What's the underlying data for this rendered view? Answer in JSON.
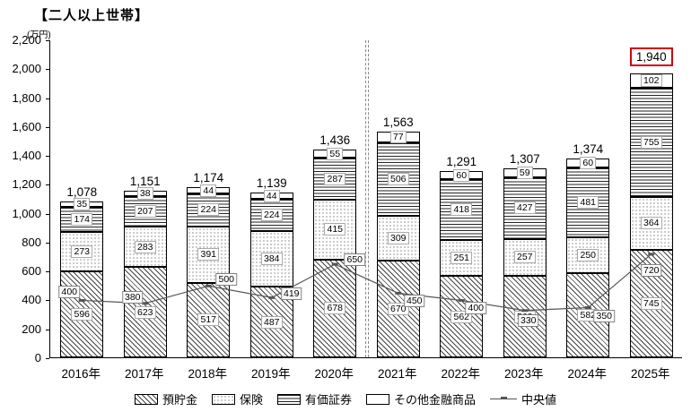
{
  "title": "【二人以上世帯】",
  "chart_data": {
    "type": "bar",
    "stacked": true,
    "title": "【二人以上世帯】",
    "y_unit": "(万円)",
    "ylim": [
      0,
      2200
    ],
    "ytick_interval": 200,
    "grid": false,
    "legend_position": "bottom",
    "categories": [
      "2016年",
      "2017年",
      "2018年",
      "2019年",
      "2020年",
      "2021年",
      "2022年",
      "2023年",
      "2024年",
      "2025年"
    ],
    "totals": [
      "1,078",
      "1,151",
      "1,174",
      "1,139",
      "1,436",
      "1,563",
      "1,291",
      "1,307",
      "1,374",
      "1,940"
    ],
    "highlighted_total_index": 9,
    "series": [
      {
        "name": "預貯金",
        "pattern": "diagonal",
        "values": [
          596,
          623,
          517,
          487,
          678,
          670,
          562,
          563,
          582,
          745
        ]
      },
      {
        "name": "保険",
        "pattern": "dots",
        "values": [
          273,
          283,
          391,
          384,
          415,
          309,
          251,
          257,
          250,
          364
        ]
      },
      {
        "name": "有価証券",
        "pattern": "hlines",
        "values": [
          174,
          207,
          224,
          224,
          287,
          506,
          418,
          427,
          481,
          755
        ]
      },
      {
        "name": "その他金融商品",
        "pattern": "plain",
        "values": [
          35,
          38,
          44,
          44,
          55,
          77,
          60,
          59,
          60,
          102
        ]
      }
    ],
    "median": {
      "name": "中央値",
      "values": [
        400,
        380,
        500,
        419,
        650,
        450,
        400,
        330,
        350,
        720
      ]
    },
    "divider_between": [
      "2020年",
      "2021年"
    ]
  }
}
